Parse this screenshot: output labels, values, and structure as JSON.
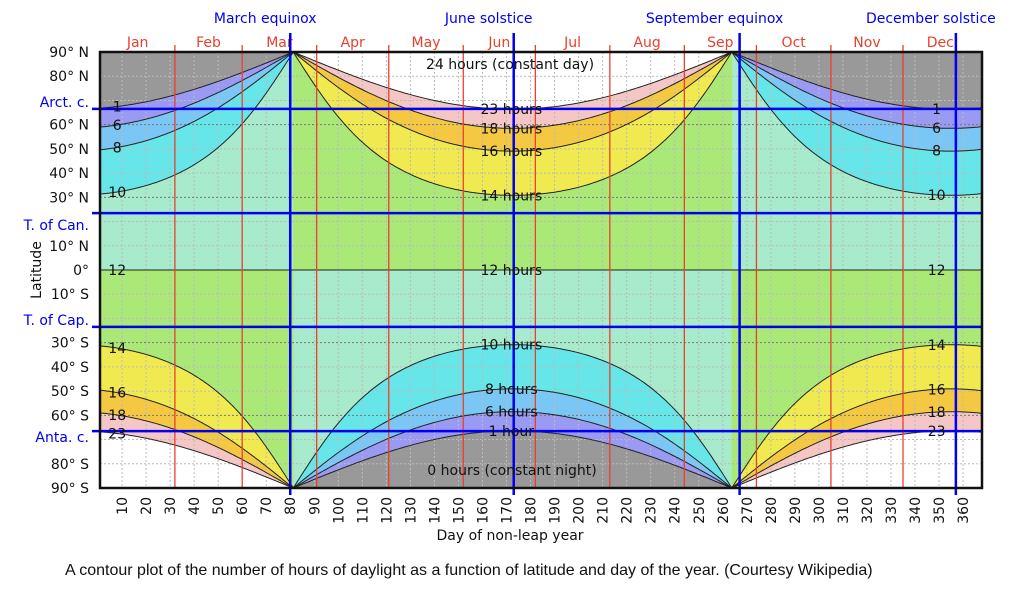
{
  "chart_data": {
    "type": "contour",
    "title": "",
    "xlabel": "Day of non-leap year",
    "ylabel": "Latitude",
    "xlim": [
      1,
      368
    ],
    "ylim": [
      -90,
      90
    ],
    "grid": true,
    "x_ticks": [
      10,
      20,
      30,
      40,
      50,
      60,
      70,
      80,
      90,
      100,
      110,
      120,
      130,
      140,
      150,
      160,
      170,
      180,
      190,
      200,
      210,
      220,
      230,
      240,
      250,
      260,
      270,
      280,
      290,
      300,
      310,
      320,
      330,
      340,
      350,
      360
    ],
    "y_ticks": [
      {
        "lat": 90,
        "label": "90° N"
      },
      {
        "lat": 80,
        "label": "80° N"
      },
      {
        "lat": 66.5,
        "label": "Arct. c.",
        "special": true
      },
      {
        "lat": 60,
        "label": "60° N"
      },
      {
        "lat": 50,
        "label": "50° N"
      },
      {
        "lat": 40,
        "label": "40° N"
      },
      {
        "lat": 30,
        "label": "30° N"
      },
      {
        "lat": 23.5,
        "label": "T. of Can.",
        "special": true
      },
      {
        "lat": 10,
        "label": "10° N"
      },
      {
        "lat": 0,
        "label": "0°"
      },
      {
        "lat": -10,
        "label": "10° S"
      },
      {
        "lat": -23.5,
        "label": "T. of Cap.",
        "special": true
      },
      {
        "lat": -30,
        "label": "30° S"
      },
      {
        "lat": -40,
        "label": "40° S"
      },
      {
        "lat": -50,
        "label": "50° S"
      },
      {
        "lat": -60,
        "label": "60° S"
      },
      {
        "lat": -66.5,
        "label": "Anta. c.",
        "special": true
      },
      {
        "lat": -80,
        "label": "80° S"
      },
      {
        "lat": -90,
        "label": "90° S"
      }
    ],
    "months": [
      {
        "label": "Jan",
        "start": 1
      },
      {
        "label": "Feb",
        "start": 32
      },
      {
        "label": "Mar",
        "start": 60
      },
      {
        "label": "Apr",
        "start": 91
      },
      {
        "label": "May",
        "start": 121
      },
      {
        "label": "Jun",
        "start": 152
      },
      {
        "label": "Jul",
        "start": 182
      },
      {
        "label": "Aug",
        "start": 213
      },
      {
        "label": "Sep",
        "start": 244
      },
      {
        "label": "Oct",
        "start": 274
      },
      {
        "label": "Nov",
        "start": 305
      },
      {
        "label": "Dec",
        "start": 335
      }
    ],
    "events": [
      {
        "label": "March equinox",
        "day": 80
      },
      {
        "label": "June solstice",
        "day": 173
      },
      {
        "label": "September equinox",
        "day": 267
      },
      {
        "label": "December solstice",
        "day": 357
      }
    ],
    "contour_levels": [
      1,
      6,
      8,
      10,
      12,
      14,
      16,
      18,
      23
    ],
    "bands": [
      {
        "from": null,
        "to": 1,
        "color": "#999999"
      },
      {
        "from": 1,
        "to": 6,
        "color": "#9a9af2"
      },
      {
        "from": 6,
        "to": 8,
        "color": "#7ac6f4"
      },
      {
        "from": 8,
        "to": 10,
        "color": "#66e6e8"
      },
      {
        "from": 10,
        "to": 12,
        "color": "#a8eacc"
      },
      {
        "from": 12,
        "to": 14,
        "color": "#aae878"
      },
      {
        "from": 14,
        "to": 16,
        "color": "#f0ea50"
      },
      {
        "from": 16,
        "to": 18,
        "color": "#f5c842"
      },
      {
        "from": 18,
        "to": 23,
        "color": "#f4c6c6"
      },
      {
        "from": 23,
        "to": null,
        "color": "#ffffff"
      }
    ],
    "contour_labels_left": [
      {
        "level": 1,
        "text": "1"
      },
      {
        "level": 6,
        "text": "6"
      },
      {
        "level": 8,
        "text": "8"
      },
      {
        "level": 10,
        "text": "10"
      },
      {
        "level": 12,
        "text": "12"
      },
      {
        "level": 14,
        "text": "14"
      },
      {
        "level": 16,
        "text": "16"
      },
      {
        "level": 18,
        "text": "18"
      },
      {
        "level": 23,
        "text": "23"
      }
    ],
    "contour_labels_right": [
      {
        "level": 1,
        "text": "1"
      },
      {
        "level": 6,
        "text": "6"
      },
      {
        "level": 8,
        "text": "8"
      },
      {
        "level": 10,
        "text": "10"
      },
      {
        "level": 12,
        "text": "12"
      },
      {
        "level": 14,
        "text": "14"
      },
      {
        "level": 16,
        "text": "16"
      },
      {
        "level": 18,
        "text": "18"
      },
      {
        "level": 23,
        "text": "23"
      }
    ],
    "contour_labels_mid": [
      {
        "level": 23,
        "text": "23 hours"
      },
      {
        "level": 18,
        "text": "18 hours"
      },
      {
        "level": 16,
        "text": "16 hours"
      },
      {
        "level": 14,
        "text": "14 hours"
      },
      {
        "level": 12,
        "text": "12 hours"
      },
      {
        "level": 10,
        "text": "10 hours"
      },
      {
        "level": 8,
        "text": "8 hours"
      },
      {
        "level": 6,
        "text": "6 hours"
      },
      {
        "level": 1,
        "text": "1 hour"
      }
    ],
    "region_labels": {
      "day": "24 hours (constant day)",
      "night": "0 hours (constant night)"
    },
    "colors": {
      "month_line": "#e8402e",
      "event_line": "#0000ee",
      "contour": "#222222"
    }
  },
  "caption": "A contour plot of the number of hours of daylight as a function of latitude and day of the year. (Courtesy Wikipedia)"
}
